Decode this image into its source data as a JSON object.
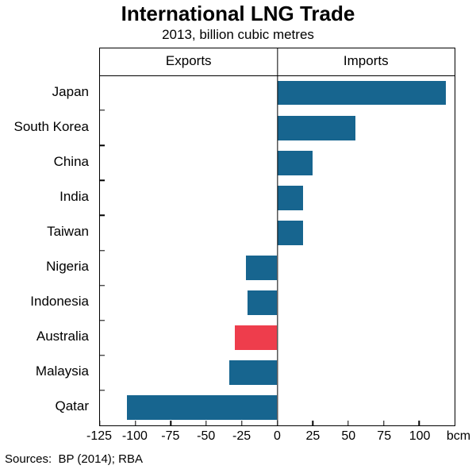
{
  "colors": {
    "bar": "#17658f",
    "highlight": "#ee3d4c",
    "axis": "#000000",
    "background": "#ffffff"
  },
  "source_note": "Sources:  BP (2014); RBA",
  "chart_data": {
    "type": "bar",
    "orientation": "horizontal",
    "title": "International LNG Trade",
    "subtitle": "2013, billion cubic metres",
    "panel_labels": {
      "left": "Exports",
      "right": "Imports"
    },
    "unit": "bcm",
    "xlim": [
      -125,
      125
    ],
    "xticks": [
      -125,
      -100,
      -75,
      -50,
      -25,
      0,
      25,
      50,
      75,
      100
    ],
    "categories": [
      "Japan",
      "South Korea",
      "China",
      "India",
      "Taiwan",
      "Nigeria",
      "Indonesia",
      "Australia",
      "Malaysia",
      "Qatar"
    ],
    "values": [
      119,
      55,
      25,
      18,
      18,
      -22,
      -21,
      -30,
      -34,
      -106
    ],
    "highlight_category": "Australia",
    "grid": false,
    "legend": false
  }
}
